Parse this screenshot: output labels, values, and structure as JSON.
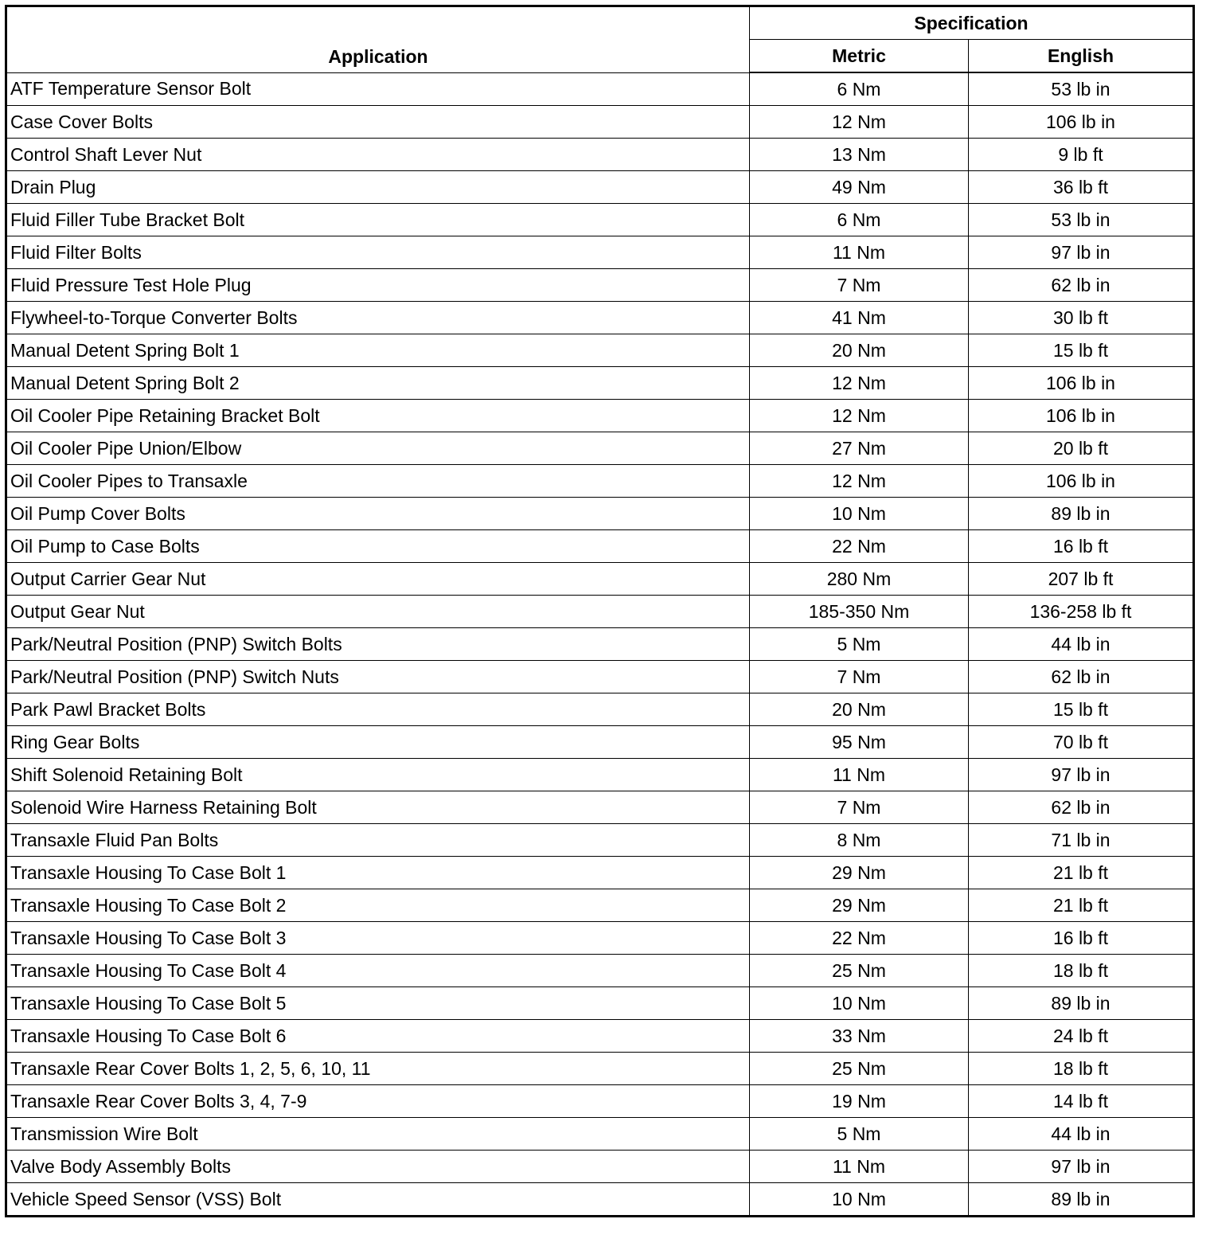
{
  "headers": {
    "application": "Application",
    "specification": "Specification",
    "metric": "Metric",
    "english": "English"
  },
  "rows": [
    [
      "ATF Temperature Sensor Bolt",
      "6 Nm",
      "53 lb in"
    ],
    [
      "Case Cover Bolts",
      "12 Nm",
      "106 lb in"
    ],
    [
      "Control Shaft Lever Nut",
      "13 Nm",
      "9 lb ft"
    ],
    [
      "Drain Plug",
      "49 Nm",
      "36 lb ft"
    ],
    [
      "Fluid Filler Tube Bracket Bolt",
      "6 Nm",
      "53 lb in"
    ],
    [
      "Fluid Filter Bolts",
      "11 Nm",
      "97 lb in"
    ],
    [
      "Fluid Pressure Test Hole Plug",
      "7 Nm",
      "62 lb in"
    ],
    [
      "Flywheel-to-Torque Converter Bolts",
      "41 Nm",
      "30 lb ft"
    ],
    [
      "Manual Detent Spring Bolt 1",
      "20 Nm",
      "15 lb ft"
    ],
    [
      "Manual Detent Spring Bolt 2",
      "12 Nm",
      "106 lb in"
    ],
    [
      "Oil Cooler Pipe Retaining Bracket Bolt",
      "12 Nm",
      "106 lb in"
    ],
    [
      "Oil Cooler Pipe Union/Elbow",
      "27 Nm",
      "20 lb ft"
    ],
    [
      "Oil Cooler Pipes to Transaxle",
      "12 Nm",
      "106 lb in"
    ],
    [
      "Oil Pump Cover Bolts",
      "10 Nm",
      "89 lb in"
    ],
    [
      "Oil Pump to Case Bolts",
      "22 Nm",
      "16 lb ft"
    ],
    [
      "Output Carrier Gear Nut",
      "280 Nm",
      "207 lb ft"
    ],
    [
      "Output Gear Nut",
      "185-350 Nm",
      "136-258 lb ft"
    ],
    [
      "Park/Neutral Position (PNP) Switch Bolts",
      "5 Nm",
      "44 lb in"
    ],
    [
      "Park/Neutral Position (PNP) Switch Nuts",
      "7 Nm",
      "62 lb in"
    ],
    [
      "Park Pawl Bracket Bolts",
      "20 Nm",
      "15 lb ft"
    ],
    [
      "Ring Gear Bolts",
      "95 Nm",
      "70 lb ft"
    ],
    [
      "Shift Solenoid Retaining Bolt",
      "11 Nm",
      "97 lb in"
    ],
    [
      "Solenoid Wire Harness Retaining Bolt",
      "7 Nm",
      "62 lb in"
    ],
    [
      "Transaxle Fluid Pan Bolts",
      "8 Nm",
      "71 lb in"
    ],
    [
      "Transaxle Housing To Case Bolt 1",
      "29 Nm",
      "21 lb ft"
    ],
    [
      "Transaxle Housing To Case Bolt 2",
      "29 Nm",
      "21 lb ft"
    ],
    [
      "Transaxle Housing To Case Bolt 3",
      "22 Nm",
      "16 lb ft"
    ],
    [
      "Transaxle Housing To Case Bolt 4",
      "25 Nm",
      "18 lb ft"
    ],
    [
      "Transaxle Housing To Case Bolt 5",
      "10 Nm",
      "89 lb in"
    ],
    [
      "Transaxle Housing To Case Bolt 6",
      "33 Nm",
      "24 lb ft"
    ],
    [
      "Transaxle Rear Cover Bolts 1, 2, 5, 6, 10, 11",
      "25 Nm",
      "18 lb ft"
    ],
    [
      "Transaxle Rear Cover Bolts 3, 4, 7-9",
      "19 Nm",
      "14 lb ft"
    ],
    [
      "Transmission Wire Bolt",
      "5 Nm",
      "44 lb  in"
    ],
    [
      "Valve Body Assembly Bolts",
      "11 Nm",
      "97 lb in"
    ],
    [
      "Vehicle Speed Sensor (VSS) Bolt",
      "10 Nm",
      "89 lb in"
    ]
  ]
}
